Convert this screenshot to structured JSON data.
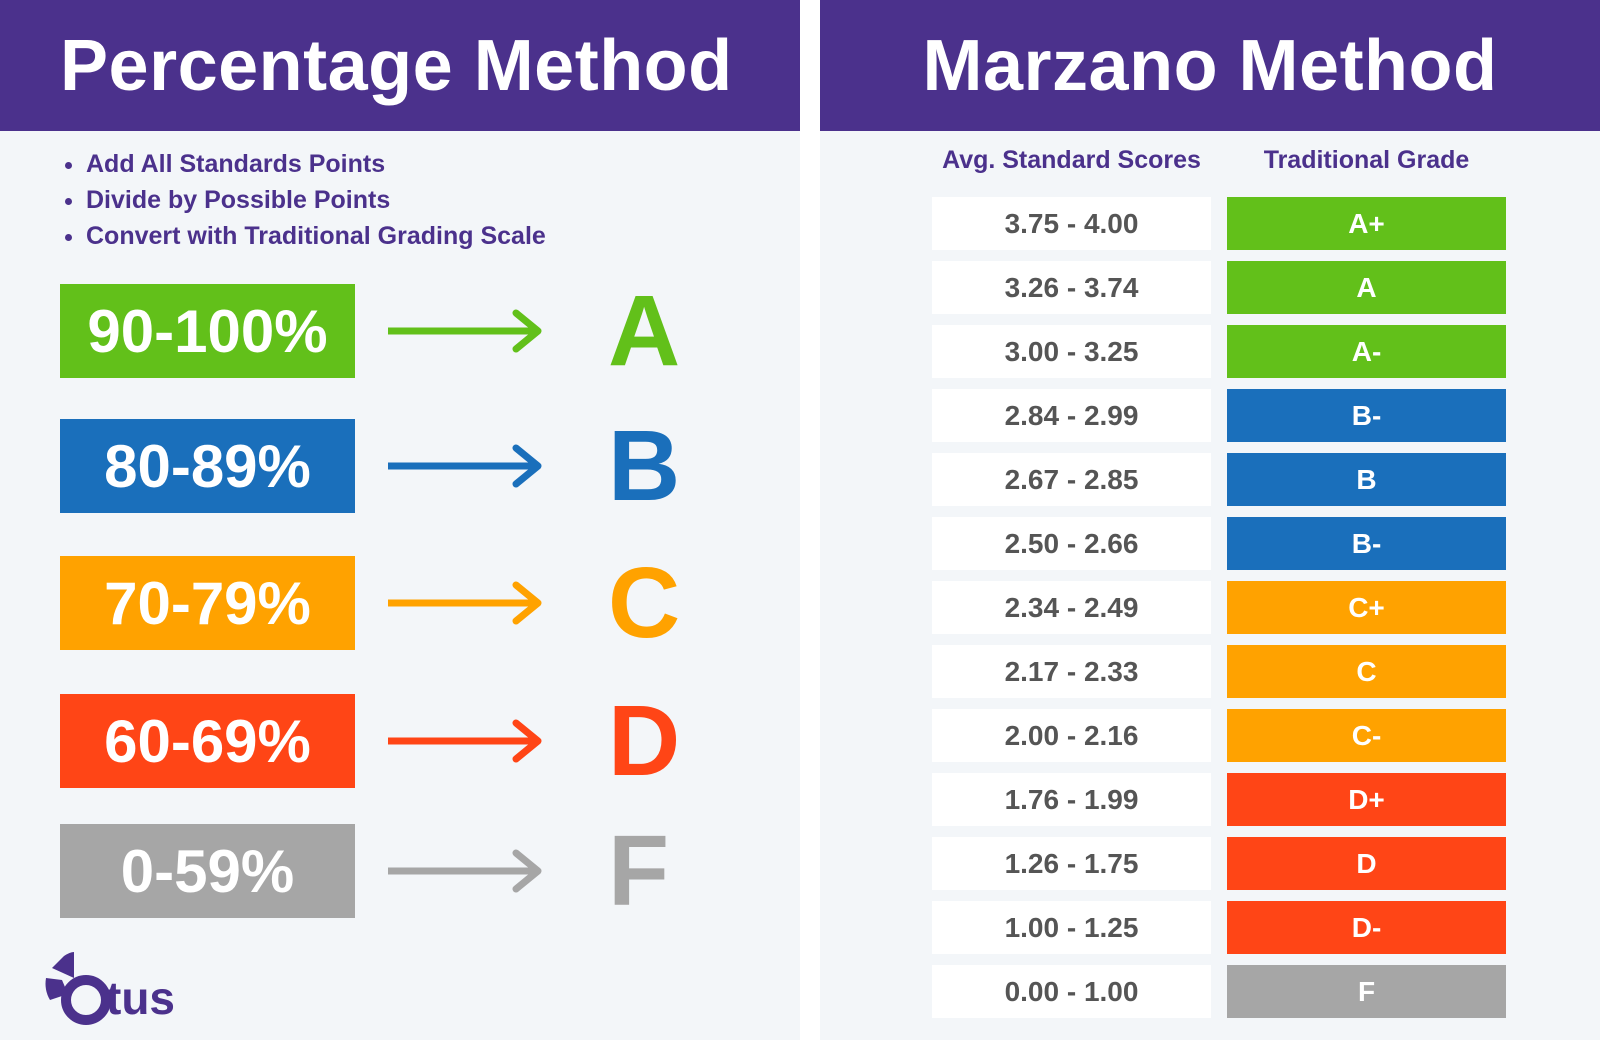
{
  "percentage": {
    "title": "Percentage Method",
    "bullets": [
      "Add All Standards Points",
      "Divide by Possible Points",
      "Convert with Traditional Grading Scale"
    ],
    "rows": [
      {
        "range": "90-100%",
        "grade": "A",
        "color": "#62c01a"
      },
      {
        "range": "80-89%",
        "grade": "B",
        "color": "#1a6fbb"
      },
      {
        "range": "70-79%",
        "grade": "C",
        "color": "#ffa200"
      },
      {
        "range": "60-69%",
        "grade": "D",
        "color": "#ff4516"
      },
      {
        "range": "0-59%",
        "grade": "F",
        "color": "#a6a6a6"
      }
    ]
  },
  "marzano": {
    "title": "Marzano Method",
    "col_scores": "Avg. Standard Scores",
    "col_grade": "Traditional Grade",
    "rows": [
      {
        "score": "3.75 - 4.00",
        "grade": "A+",
        "color": "#62c01a"
      },
      {
        "score": "3.26 - 3.74",
        "grade": "A",
        "color": "#62c01a"
      },
      {
        "score": "3.00 - 3.25",
        "grade": "A-",
        "color": "#62c01a"
      },
      {
        "score": "2.84 - 2.99",
        "grade": "B-",
        "color": "#1a6fbb"
      },
      {
        "score": "2.67 - 2.85",
        "grade": "B",
        "color": "#1a6fbb"
      },
      {
        "score": "2.50 - 2.66",
        "grade": "B-",
        "color": "#1a6fbb"
      },
      {
        "score": "2.34 - 2.49",
        "grade": "C+",
        "color": "#ffa200"
      },
      {
        "score": "2.17 - 2.33",
        "grade": "C",
        "color": "#ffa200"
      },
      {
        "score": "2.00 - 2.16",
        "grade": "C-",
        "color": "#ffa200"
      },
      {
        "score": "1.76 - 1.99",
        "grade": "D+",
        "color": "#ff4516"
      },
      {
        "score": "1.26 - 1.75",
        "grade": "D",
        "color": "#ff4516"
      },
      {
        "score": "1.00 - 1.25",
        "grade": "D-",
        "color": "#ff4516"
      },
      {
        "score": "0.00 - 1.00",
        "grade": "F",
        "color": "#a6a6a6"
      }
    ]
  },
  "logo": {
    "text": "Otus"
  },
  "colors": {
    "brand": "#4b318c",
    "background": "#f3f6f9"
  }
}
